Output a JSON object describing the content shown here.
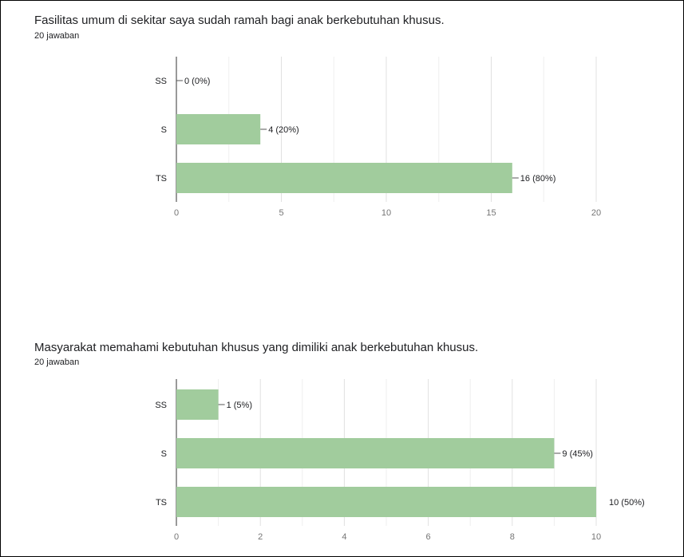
{
  "charts": [
    {
      "question": "Fasilitas umum di sekitar saya sudah ramah bagi anak berkebutuhan khusus.",
      "responses": "20 jawaban"
    },
    {
      "question": "Masyarakat memahami kebutuhan khusus yang dimiliki anak berkebutuhan khusus.",
      "responses": "20 jawaban"
    }
  ],
  "bar_color": "#a1cc9d",
  "chart_data": [
    {
      "type": "bar",
      "orientation": "horizontal",
      "title": "Fasilitas umum di sekitar saya sudah ramah bagi anak berkebutuhan khusus.",
      "subtitle": "20 jawaban",
      "categories": [
        "SS",
        "S",
        "TS"
      ],
      "values": [
        0,
        4,
        16
      ],
      "data_labels": [
        "0 (0%)",
        "4 (20%)",
        "16 (80%)"
      ],
      "xlim": [
        0,
        20
      ],
      "xticks": [
        0,
        5,
        10,
        15,
        20
      ],
      "grid": true,
      "legend": "none"
    },
    {
      "type": "bar",
      "orientation": "horizontal",
      "title": "Masyarakat memahami kebutuhan khusus yang dimiliki anak berkebutuhan khusus.",
      "subtitle": "20 jawaban",
      "categories": [
        "SS",
        "S",
        "TS"
      ],
      "values": [
        1,
        9,
        10
      ],
      "data_labels": [
        "1 (5%)",
        "9 (45%)",
        "10 (50%)"
      ],
      "xlim": [
        0,
        10
      ],
      "xticks": [
        0,
        2,
        4,
        6,
        8,
        10
      ],
      "grid": true,
      "legend": "none"
    }
  ]
}
